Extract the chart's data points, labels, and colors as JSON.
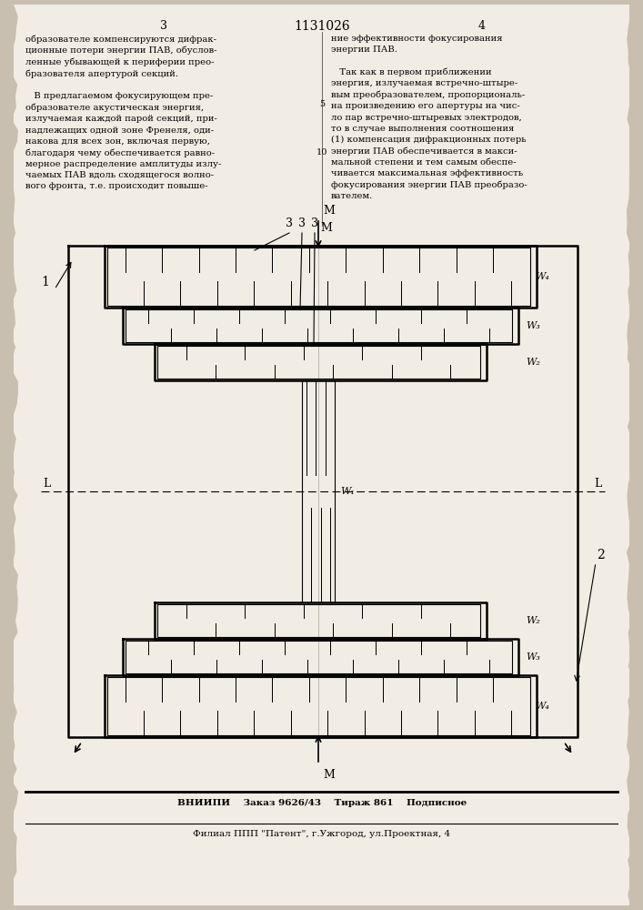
{
  "page_number_left": "3",
  "patent_number": "1131026",
  "page_number_right": "4",
  "text_left": "образователе компенсируются дифрак-\nционные потери энергии ПАВ, обуслов-\nленные убывающей к периферии прео-\nбразователя апертурой секций.\n\n   В предлагаемом фокусирующем пре-\nобразователе акустическая энергия,\nизлучаемая каждой парой секций, при-\nнадлежащих одной зоне Френеля, оди-\nнакова для всех зон, включая первую,\nблагодаря чему обеспечивается равно-\nмерное распределение амплитуды излу-\nчаемых ПАВ вдоль сходящегося волно-\nвого фронта, т.е. происходит повыше-",
  "text_right": "ние эффективности фокусирования\nэнергии ПАВ.\n\n   Так как в первом приближении\nэнергия, излучаемая встречно-штыре-\nвым преобразователем, пропорциональ-\nна произведению его апертуры на чис-\nло пар встречно-штыревых электродов,\nто в случае выполнения соотношения\n(1) компенсация дифракционных потерь\nэнергии ПАВ обеспечивается в макси-\nмальной степени и тем самым обеспе-\nчивается максимальная эффективность\nфокусирования энергии ПАВ преобразо-\nвателем.",
  "line_number_5": "5",
  "line_number_10": "10",
  "footer_line1": "ВНИИПИ    Заказ 9626/43    Тираж 861    Подписное",
  "footer_line2": "Филиал ППП \"Патент\", г.Ужгород, ул.Проектная, 4"
}
